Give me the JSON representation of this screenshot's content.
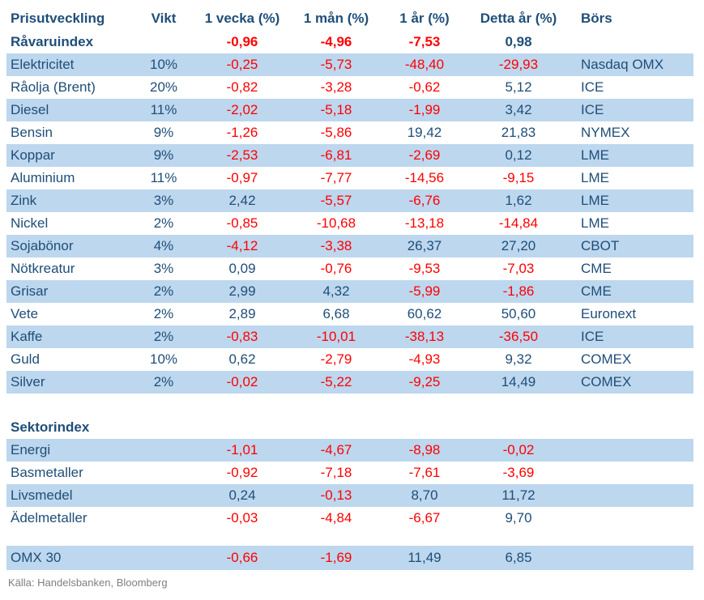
{
  "colors": {
    "row_band": "#BDD7EE",
    "text_navy": "#1F4E79",
    "negative_red": "#FF0000",
    "source_gray": "#7F7F7F"
  },
  "chart_data": {
    "type": "table",
    "title": "Prisutveckling",
    "columns": [
      "Prisutveckling",
      "Vikt",
      "1 vecka (%)",
      "1 mån (%)",
      "1 år (%)",
      "Detta år (%)",
      "Börs"
    ],
    "rows": [
      {
        "type": "index",
        "label": "Råvaruindex",
        "vikt": "",
        "values": [
          "-0,96",
          "-4,96",
          "-7,53",
          "0,98"
        ],
        "bors": "",
        "shaded": false
      },
      {
        "type": "data",
        "label": "Elektricitet",
        "vikt": "10%",
        "values": [
          "-0,25",
          "-5,73",
          "-48,40",
          "-29,93"
        ],
        "bors": "Nasdaq OMX",
        "shaded": true
      },
      {
        "type": "data",
        "label": "Råolja (Brent)",
        "vikt": "20%",
        "values": [
          "-0,82",
          "-3,28",
          "-0,62",
          "5,12"
        ],
        "bors": "ICE",
        "shaded": false
      },
      {
        "type": "data",
        "label": "Diesel",
        "vikt": "11%",
        "values": [
          "-2,02",
          "-5,18",
          "-1,99",
          "3,42"
        ],
        "bors": "ICE",
        "shaded": true
      },
      {
        "type": "data",
        "label": "Bensin",
        "vikt": "9%",
        "values": [
          "-1,26",
          "-5,86",
          "19,42",
          "21,83"
        ],
        "bors": "NYMEX",
        "shaded": false
      },
      {
        "type": "data",
        "label": "Koppar",
        "vikt": "9%",
        "values": [
          "-2,53",
          "-6,81",
          "-2,69",
          "0,12"
        ],
        "bors": "LME",
        "shaded": true
      },
      {
        "type": "data",
        "label": "Aluminium",
        "vikt": "11%",
        "values": [
          "-0,97",
          "-7,77",
          "-14,56",
          "-9,15"
        ],
        "bors": "LME",
        "shaded": false
      },
      {
        "type": "data",
        "label": "Zink",
        "vikt": "3%",
        "values": [
          "2,42",
          "-5,57",
          "-6,76",
          "1,62"
        ],
        "bors": "LME",
        "shaded": true
      },
      {
        "type": "data",
        "label": "Nickel",
        "vikt": "2%",
        "values": [
          "-0,85",
          "-10,68",
          "-13,18",
          "-14,84"
        ],
        "bors": "LME",
        "shaded": false
      },
      {
        "type": "data",
        "label": "Sojabönor",
        "vikt": "4%",
        "values": [
          "-4,12",
          "-3,38",
          "26,37",
          "27,20"
        ],
        "bors": "CBOT",
        "shaded": true
      },
      {
        "type": "data",
        "label": "Nötkreatur",
        "vikt": "3%",
        "values": [
          "0,09",
          "-0,76",
          "-9,53",
          "-7,03"
        ],
        "bors": "CME",
        "shaded": false
      },
      {
        "type": "data",
        "label": "Grisar",
        "vikt": "2%",
        "values": [
          "2,99",
          "4,32",
          "-5,99",
          "-1,86"
        ],
        "bors": "CME",
        "shaded": true
      },
      {
        "type": "data",
        "label": "Vete",
        "vikt": "2%",
        "values": [
          "2,89",
          "6,68",
          "60,62",
          "50,60"
        ],
        "bors": "Euronext",
        "shaded": false
      },
      {
        "type": "data",
        "label": "Kaffe",
        "vikt": "2%",
        "values": [
          "-0,83",
          "-10,01",
          "-38,13",
          "-36,50"
        ],
        "bors": "ICE",
        "shaded": true
      },
      {
        "type": "data",
        "label": "Guld",
        "vikt": "10%",
        "values": [
          "0,62",
          "-2,79",
          "-4,93",
          "9,32"
        ],
        "bors": "COMEX",
        "shaded": false
      },
      {
        "type": "data",
        "label": "Silver",
        "vikt": "2%",
        "values": [
          "-0,02",
          "-5,22",
          "-9,25",
          "14,49"
        ],
        "bors": "COMEX",
        "shaded": true
      },
      {
        "type": "spacer"
      },
      {
        "type": "section",
        "label": "Sektorindex",
        "vikt": "",
        "values": [
          "",
          "",
          "",
          ""
        ],
        "bors": "",
        "shaded": false
      },
      {
        "type": "data",
        "label": "Energi",
        "vikt": "",
        "values": [
          "-1,01",
          "-4,67",
          "-8,98",
          "-0,02"
        ],
        "bors": "",
        "shaded": true
      },
      {
        "type": "data",
        "label": "Basmetaller",
        "vikt": "",
        "values": [
          "-0,92",
          "-7,18",
          "-7,61",
          "-3,69"
        ],
        "bors": "",
        "shaded": false
      },
      {
        "type": "data",
        "label": "Livsmedel",
        "vikt": "",
        "values": [
          "0,24",
          "-0,13",
          "8,70",
          "11,72"
        ],
        "bors": "",
        "shaded": true
      },
      {
        "type": "data",
        "label": "Ädelmetaller",
        "vikt": "",
        "values": [
          "-0,03",
          "-4,84",
          "-6,67",
          "9,70"
        ],
        "bors": "",
        "shaded": false
      },
      {
        "type": "spacer_small"
      },
      {
        "type": "omx",
        "label": "OMX 30",
        "vikt": "",
        "values": [
          "-0,66",
          "-1,69",
          "11,49",
          "6,85"
        ],
        "bors": "",
        "shaded": true
      }
    ]
  },
  "footer": {
    "source": "Källa: Handelsbanken, Bloomberg"
  }
}
